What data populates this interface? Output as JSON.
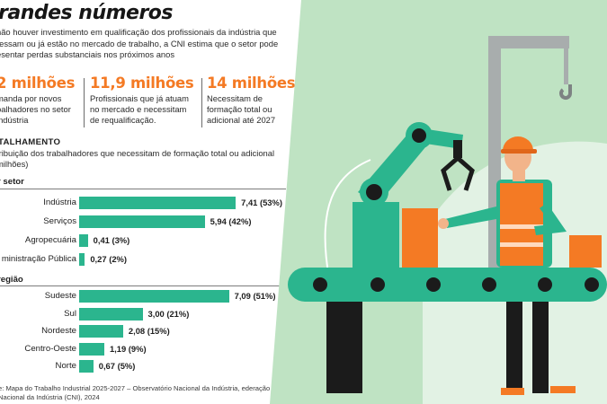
{
  "header": {
    "title": "randes números",
    "intro": "não houver investimento em qualificação dos profissionais da indústria que ressam ou já estão no mercado de trabalho, a CNI estima que o setor pode esentar perdas substanciais nos próximos anos"
  },
  "stats": [
    {
      "value": "2 milhões",
      "description": "manda por novos balhadores no setor indústria"
    },
    {
      "value": "11,9 milhões",
      "description": "Profissionais que já atuam no mercado e necessitam de requalificação."
    },
    {
      "value": "14 milhões",
      "description": "Necessitam de formação total ou adicional até 2027"
    }
  ],
  "section": {
    "title": "TALHAMENTO",
    "description": "tribuição dos trabalhadores que necessitam de formação total ou adicional milhões)"
  },
  "source": "e: Mapa do Trabalho Industrial 2025-2027 – Observatório Nacional da Indústria, ederação Nacional da Indústria (CNI), 2024",
  "colors": {
    "accent": "#f47a24",
    "bar": "#2bb58e",
    "illustration_bg": "#bfe3c3"
  },
  "chart_data": [
    {
      "type": "bar",
      "orientation": "horizontal",
      "title": "r setor",
      "categories": [
        "Indústria",
        "Serviços",
        "Agropecuária",
        "ministração Pública"
      ],
      "values": [
        7.41,
        5.94,
        0.41,
        0.27
      ],
      "labels": [
        "7,41 (53%)",
        "5,94 (42%)",
        "0,41 (3%)",
        "0,27 (2%)"
      ]
    },
    {
      "type": "bar",
      "orientation": "horizontal",
      "title": "região",
      "categories": [
        "Sudeste",
        "Sul",
        "Nordeste",
        "Centro-Oeste",
        "Norte"
      ],
      "values": [
        7.09,
        3.0,
        2.08,
        1.19,
        0.67
      ],
      "labels": [
        "7,09 (51%)",
        "3,00 (21%)",
        "2,08 (15%)",
        "1,19 (9%)",
        "0,67 (5%)"
      ]
    }
  ]
}
